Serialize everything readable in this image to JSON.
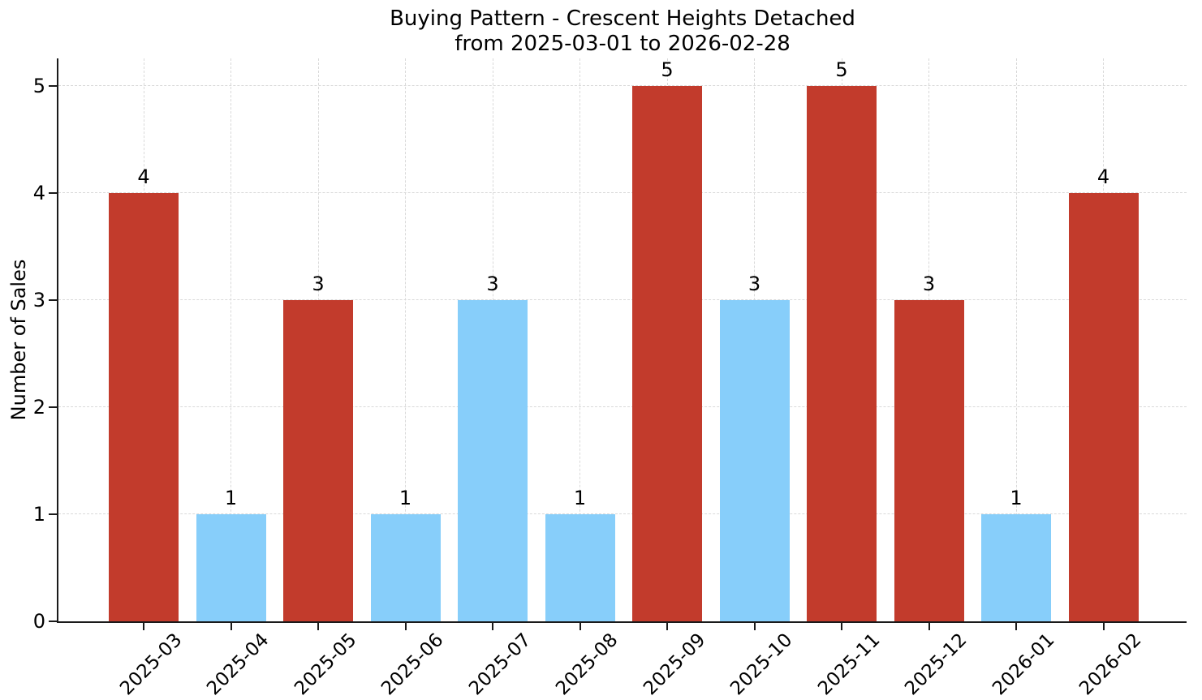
{
  "chart_data": {
    "type": "bar",
    "title": "Buying Pattern - Crescent Heights Detached",
    "subtitle": "from 2025-03-01 to 2026-02-28",
    "xlabel": "",
    "ylabel": "Number of Sales",
    "categories": [
      "2025-03",
      "2025-04",
      "2025-05",
      "2025-06",
      "2025-07",
      "2025-08",
      "2025-09",
      "2025-10",
      "2025-11",
      "2025-12",
      "2026-01",
      "2026-02"
    ],
    "values": [
      4,
      1,
      3,
      1,
      3,
      1,
      5,
      3,
      5,
      3,
      1,
      4
    ],
    "bar_labels": [
      "4",
      "1",
      "3",
      "1",
      "3",
      "1",
      "5",
      "3",
      "5",
      "3",
      "1",
      "4"
    ],
    "bar_colors": [
      "#c23b2c",
      "#87cefa",
      "#c23b2c",
      "#87cefa",
      "#87cefa",
      "#87cefa",
      "#c23b2c",
      "#87cefa",
      "#c23b2c",
      "#c23b2c",
      "#87cefa",
      "#c23b2c"
    ],
    "yticks": [
      "0",
      "1",
      "2",
      "3",
      "4",
      "5"
    ],
    "ylim": [
      0,
      5.26
    ],
    "grid": true,
    "legend": false,
    "colors": {
      "red_bar": "#c23b2c",
      "blue_bar": "#87cefa",
      "grid": "#d9d9d9",
      "axis": "#1a1a1a",
      "background": "#ffffff"
    }
  }
}
